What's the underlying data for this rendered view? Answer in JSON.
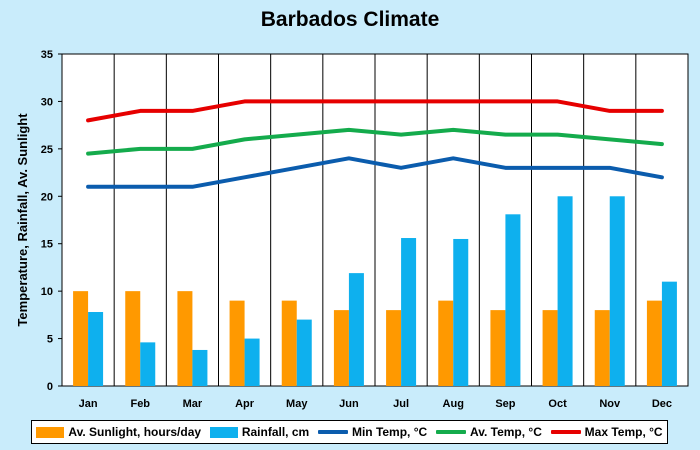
{
  "chart_data": {
    "type": "bar+line",
    "title": "Barbados Climate",
    "xlabel": "",
    "ylabel": "Temperature, Rainfall, Av. Sunlight",
    "ylim": [
      0,
      35
    ],
    "yticks": [
      0,
      5,
      10,
      15,
      20,
      25,
      30,
      35
    ],
    "grid": "vertical",
    "legend_position": "bottom",
    "categories": [
      "Jan",
      "Feb",
      "Mar",
      "Apr",
      "May",
      "Jun",
      "Jul",
      "Aug",
      "Sep",
      "Oct",
      "Nov",
      "Dec"
    ],
    "series": [
      {
        "name": "Av. Sunlight, hours/day",
        "kind": "bar",
        "color": "#ff9900",
        "values": [
          10,
          10,
          10,
          9,
          9,
          8,
          8,
          9,
          8,
          8,
          8,
          9
        ]
      },
      {
        "name": "Rainfall, cm",
        "kind": "bar",
        "color": "#0eb0ee",
        "values": [
          7.8,
          4.6,
          3.8,
          5.0,
          7.0,
          11.9,
          15.6,
          15.5,
          18.1,
          20.0,
          20.0,
          11.0
        ]
      },
      {
        "name": "Min Temp, °C",
        "kind": "line",
        "color": "#0b5cad",
        "values": [
          21,
          21,
          21,
          22,
          23,
          24,
          23,
          24,
          23,
          23,
          23,
          22
        ]
      },
      {
        "name": "Av. Temp, °C",
        "kind": "line",
        "color": "#14ab4c",
        "values": [
          24.5,
          25,
          25,
          26,
          26.5,
          27,
          26.5,
          27,
          26.5,
          26.5,
          26,
          25.5
        ]
      },
      {
        "name": "Max Temp, °C",
        "kind": "line",
        "color": "#e60000",
        "values": [
          28,
          29,
          29,
          30,
          30,
          30,
          30,
          30,
          30,
          30,
          29,
          29
        ]
      }
    ]
  }
}
